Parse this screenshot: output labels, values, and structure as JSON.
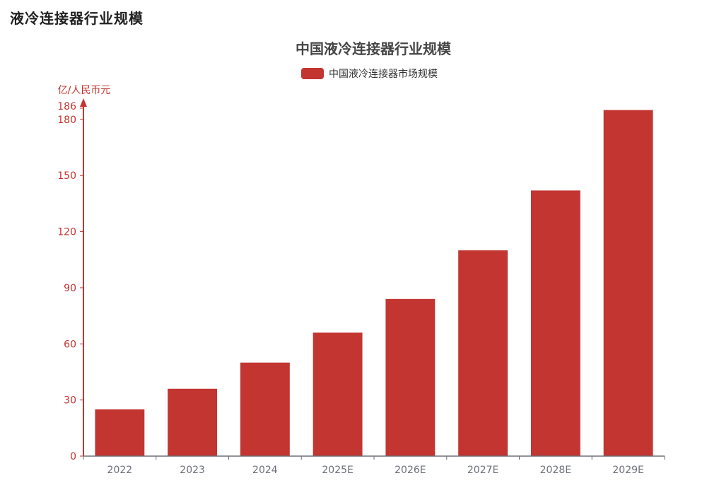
{
  "page": {
    "heading": "液冷连接器行业规模"
  },
  "colors": {
    "bar": "#c23531",
    "axis_y": "#c23531",
    "axis_x": "#6e7079",
    "title": "#464646",
    "tick_x_label": "#6e7079"
  },
  "chart_data": {
    "type": "bar",
    "title": "中国液冷连接器行业规模",
    "ylabel": "亿/人民币元",
    "xlabel": "",
    "categories": [
      "2022",
      "2023",
      "2024",
      "2025E",
      "2026E",
      "2027E",
      "2028E",
      "2029E"
    ],
    "series": [
      {
        "name": "中国液冷连接器市场规模",
        "values": [
          25,
          36,
          50,
          66,
          84,
          110,
          142,
          185
        ]
      }
    ],
    "ylim": [
      0,
      186
    ],
    "yticks": [
      0,
      30,
      60,
      90,
      120,
      150,
      180,
      186
    ],
    "legend_position": "top-center",
    "grid": false
  }
}
